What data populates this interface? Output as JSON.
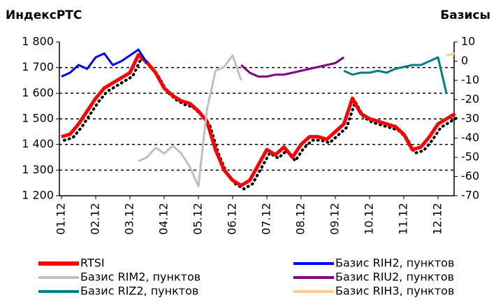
{
  "chart_data": {
    "type": "line",
    "title": "ИндексРТС",
    "y2_title": "Базисы",
    "categories": [
      "01.12",
      null,
      null,
      null,
      "02.12",
      null,
      null,
      null,
      "03.12",
      null,
      null,
      null,
      "04.12",
      null,
      null,
      null,
      "05.12",
      null,
      null,
      null,
      "06.12",
      null,
      null,
      null,
      "07.12",
      null,
      null,
      null,
      "08.12",
      null,
      null,
      null,
      "09.12",
      null,
      null,
      null,
      "10.12",
      null,
      null,
      null,
      "11.12",
      null,
      null,
      null,
      "12.12",
      null,
      null
    ],
    "ylim": [
      1200,
      1800
    ],
    "yticks": [
      {
        "value": 1200,
        "label": "1 200"
      },
      {
        "value": 1300,
        "label": "1 300"
      },
      {
        "value": 1400,
        "label": "1 400"
      },
      {
        "value": 1500,
        "label": "1 500"
      },
      {
        "value": 1600,
        "label": "1 600"
      },
      {
        "value": 1700,
        "label": "1 700"
      },
      {
        "value": 1800,
        "label": "1 800"
      }
    ],
    "y2lim": [
      -70,
      10
    ],
    "y2ticks": [
      -70,
      -60,
      -50,
      -40,
      -30,
      -20,
      -10,
      0,
      10
    ],
    "grid": true,
    "series": [
      {
        "name": "RTSI",
        "color": "#ff0000",
        "values": [
          1430,
          1440,
          1480,
          1530,
          1580,
          1620,
          1640,
          1660,
          1680,
          1750,
          1720,
          1680,
          1620,
          1590,
          1570,
          1560,
          1530,
          1490,
          1380,
          1300,
          1260,
          1240,
          1260,
          1320,
          1380,
          1360,
          1390,
          1350,
          1400,
          1430,
          1430,
          1420,
          1450,
          1480,
          1580,
          1520,
          1500,
          1490,
          1480,
          1470,
          1440,
          1380,
          1390,
          1430,
          1480,
          1500,
          1520
        ]
      },
      {
        "name": "Базис RIH2, пунктов",
        "color": "#0000ff",
        "axis": "y2",
        "values": [
          -8,
          -6,
          -2,
          -4,
          2,
          4,
          -2,
          0,
          3,
          6,
          -1,
          null,
          null,
          null,
          null,
          null,
          null,
          null,
          null,
          null,
          null,
          null,
          null,
          null,
          null,
          null,
          null,
          null,
          null,
          null,
          null,
          null,
          null,
          null,
          null,
          null,
          null,
          null,
          null,
          null,
          null,
          null,
          null,
          null,
          null,
          null,
          null
        ]
      },
      {
        "name": "Базис RIM2, пунктов",
        "color": "#c0c0c0",
        "axis": "y2",
        "values": [
          null,
          null,
          null,
          null,
          null,
          null,
          null,
          null,
          null,
          -52,
          -50,
          -45,
          -48,
          -44,
          -48,
          -55,
          -65,
          -25,
          -5,
          -3,
          3,
          -10,
          null,
          null,
          null,
          null,
          null,
          null,
          null,
          null,
          null,
          null,
          null,
          null,
          null,
          null,
          null,
          null,
          null,
          null,
          null,
          null,
          null,
          null,
          null,
          null,
          null
        ]
      },
      {
        "name": "Базис RIU2, пунктов",
        "color": "#800080",
        "axis": "y2",
        "values": [
          null,
          null,
          null,
          null,
          null,
          null,
          null,
          null,
          null,
          null,
          null,
          null,
          null,
          null,
          null,
          null,
          null,
          null,
          null,
          null,
          null,
          -2,
          -6,
          -8,
          -8,
          -7,
          -7,
          -6,
          -5,
          -4,
          -3,
          -2,
          -1,
          2,
          null,
          null,
          null,
          null,
          null,
          null,
          null,
          null,
          null,
          null,
          null,
          null,
          null
        ]
      },
      {
        "name": "Базис RIZ2, пунктов",
        "color": "#008080",
        "axis": "y2",
        "values": [
          null,
          null,
          null,
          null,
          null,
          null,
          null,
          null,
          null,
          null,
          null,
          null,
          null,
          null,
          null,
          null,
          null,
          null,
          null,
          null,
          null,
          null,
          null,
          null,
          null,
          null,
          null,
          null,
          null,
          null,
          null,
          null,
          null,
          -5,
          -7,
          -6,
          -6,
          -5,
          -6,
          -4,
          -3,
          -2,
          -2,
          0,
          2,
          -17,
          null
        ]
      },
      {
        "name": "Базис RIH3, пунктов",
        "color": "#ffcc99",
        "axis": "y2",
        "values": [
          null,
          null,
          null,
          null,
          null,
          null,
          null,
          null,
          null,
          null,
          null,
          null,
          null,
          null,
          null,
          null,
          null,
          null,
          null,
          null,
          null,
          null,
          null,
          null,
          null,
          null,
          null,
          null,
          null,
          null,
          null,
          null,
          null,
          null,
          null,
          null,
          null,
          null,
          null,
          null,
          null,
          null,
          null,
          null,
          null,
          3,
          4
        ]
      }
    ]
  }
}
